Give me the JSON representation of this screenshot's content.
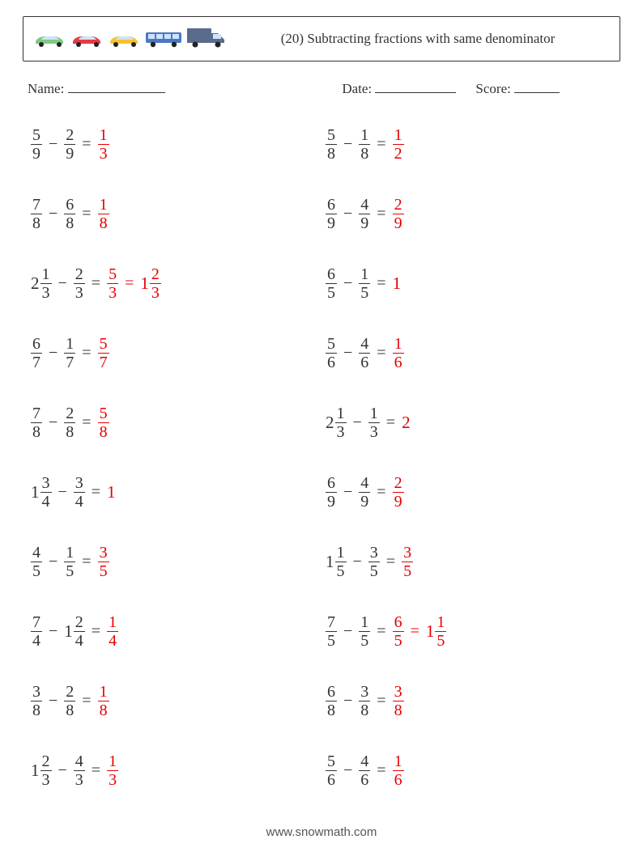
{
  "header": {
    "title": "(20) Subtracting fractions with same denominator",
    "car_colors": [
      "#7fc97f",
      "#e63946",
      "#f4c430",
      "#4a78c4",
      "#5a6b8c"
    ]
  },
  "meta": {
    "name_label": "Name:",
    "date_label": "Date:",
    "score_label": "Score:",
    "name_blank_width": 120,
    "date_blank_width": 100,
    "score_blank_width": 56
  },
  "answer_color": "#e60000",
  "text_color": "#333333",
  "columns": [
    [
      {
        "a": {
          "n": 5,
          "d": 9
        },
        "b": {
          "n": 2,
          "d": 9
        },
        "ans": [
          {
            "n": 1,
            "d": 3
          }
        ]
      },
      {
        "a": {
          "n": 7,
          "d": 8
        },
        "b": {
          "n": 6,
          "d": 8
        },
        "ans": [
          {
            "n": 1,
            "d": 8
          }
        ]
      },
      {
        "a": {
          "w": 2,
          "n": 1,
          "d": 3
        },
        "b": {
          "n": 2,
          "d": 3
        },
        "ans": [
          {
            "n": 5,
            "d": 3
          },
          {
            "w": 1,
            "n": 2,
            "d": 3
          }
        ]
      },
      {
        "a": {
          "n": 6,
          "d": 7
        },
        "b": {
          "n": 1,
          "d": 7
        },
        "ans": [
          {
            "n": 5,
            "d": 7
          }
        ]
      },
      {
        "a": {
          "n": 7,
          "d": 8
        },
        "b": {
          "n": 2,
          "d": 8
        },
        "ans": [
          {
            "n": 5,
            "d": 8
          }
        ]
      },
      {
        "a": {
          "w": 1,
          "n": 3,
          "d": 4
        },
        "b": {
          "n": 3,
          "d": 4
        },
        "ans": [
          {
            "int": 1
          }
        ]
      },
      {
        "a": {
          "n": 4,
          "d": 5
        },
        "b": {
          "n": 1,
          "d": 5
        },
        "ans": [
          {
            "n": 3,
            "d": 5
          }
        ]
      },
      {
        "a": {
          "n": 7,
          "d": 4
        },
        "b": {
          "w": 1,
          "n": 2,
          "d": 4
        },
        "ans": [
          {
            "n": 1,
            "d": 4
          }
        ]
      },
      {
        "a": {
          "n": 3,
          "d": 8
        },
        "b": {
          "n": 2,
          "d": 8
        },
        "ans": [
          {
            "n": 1,
            "d": 8
          }
        ]
      },
      {
        "a": {
          "w": 1,
          "n": 2,
          "d": 3
        },
        "b": {
          "n": 4,
          "d": 3
        },
        "ans": [
          {
            "n": 1,
            "d": 3
          }
        ]
      }
    ],
    [
      {
        "a": {
          "n": 5,
          "d": 8
        },
        "b": {
          "n": 1,
          "d": 8
        },
        "ans": [
          {
            "n": 1,
            "d": 2
          }
        ]
      },
      {
        "a": {
          "n": 6,
          "d": 9
        },
        "b": {
          "n": 4,
          "d": 9
        },
        "ans": [
          {
            "n": 2,
            "d": 9
          }
        ]
      },
      {
        "a": {
          "n": 6,
          "d": 5
        },
        "b": {
          "n": 1,
          "d": 5
        },
        "ans": [
          {
            "int": 1
          }
        ]
      },
      {
        "a": {
          "n": 5,
          "d": 6
        },
        "b": {
          "n": 4,
          "d": 6
        },
        "ans": [
          {
            "n": 1,
            "d": 6
          }
        ]
      },
      {
        "a": {
          "w": 2,
          "n": 1,
          "d": 3
        },
        "b": {
          "n": 1,
          "d": 3
        },
        "ans": [
          {
            "int": 2
          }
        ]
      },
      {
        "a": {
          "n": 6,
          "d": 9
        },
        "b": {
          "n": 4,
          "d": 9
        },
        "ans": [
          {
            "n": 2,
            "d": 9
          }
        ]
      },
      {
        "a": {
          "w": 1,
          "n": 1,
          "d": 5
        },
        "b": {
          "n": 3,
          "d": 5
        },
        "ans": [
          {
            "n": 3,
            "d": 5
          }
        ]
      },
      {
        "a": {
          "n": 7,
          "d": 5
        },
        "b": {
          "n": 1,
          "d": 5
        },
        "ans": [
          {
            "n": 6,
            "d": 5
          },
          {
            "w": 1,
            "n": 1,
            "d": 5
          }
        ]
      },
      {
        "a": {
          "n": 6,
          "d": 8
        },
        "b": {
          "n": 3,
          "d": 8
        },
        "ans": [
          {
            "n": 3,
            "d": 8
          }
        ]
      },
      {
        "a": {
          "n": 5,
          "d": 6
        },
        "b": {
          "n": 4,
          "d": 6
        },
        "ans": [
          {
            "n": 1,
            "d": 6
          }
        ]
      }
    ]
  ],
  "footer": "www.snowmath.com"
}
